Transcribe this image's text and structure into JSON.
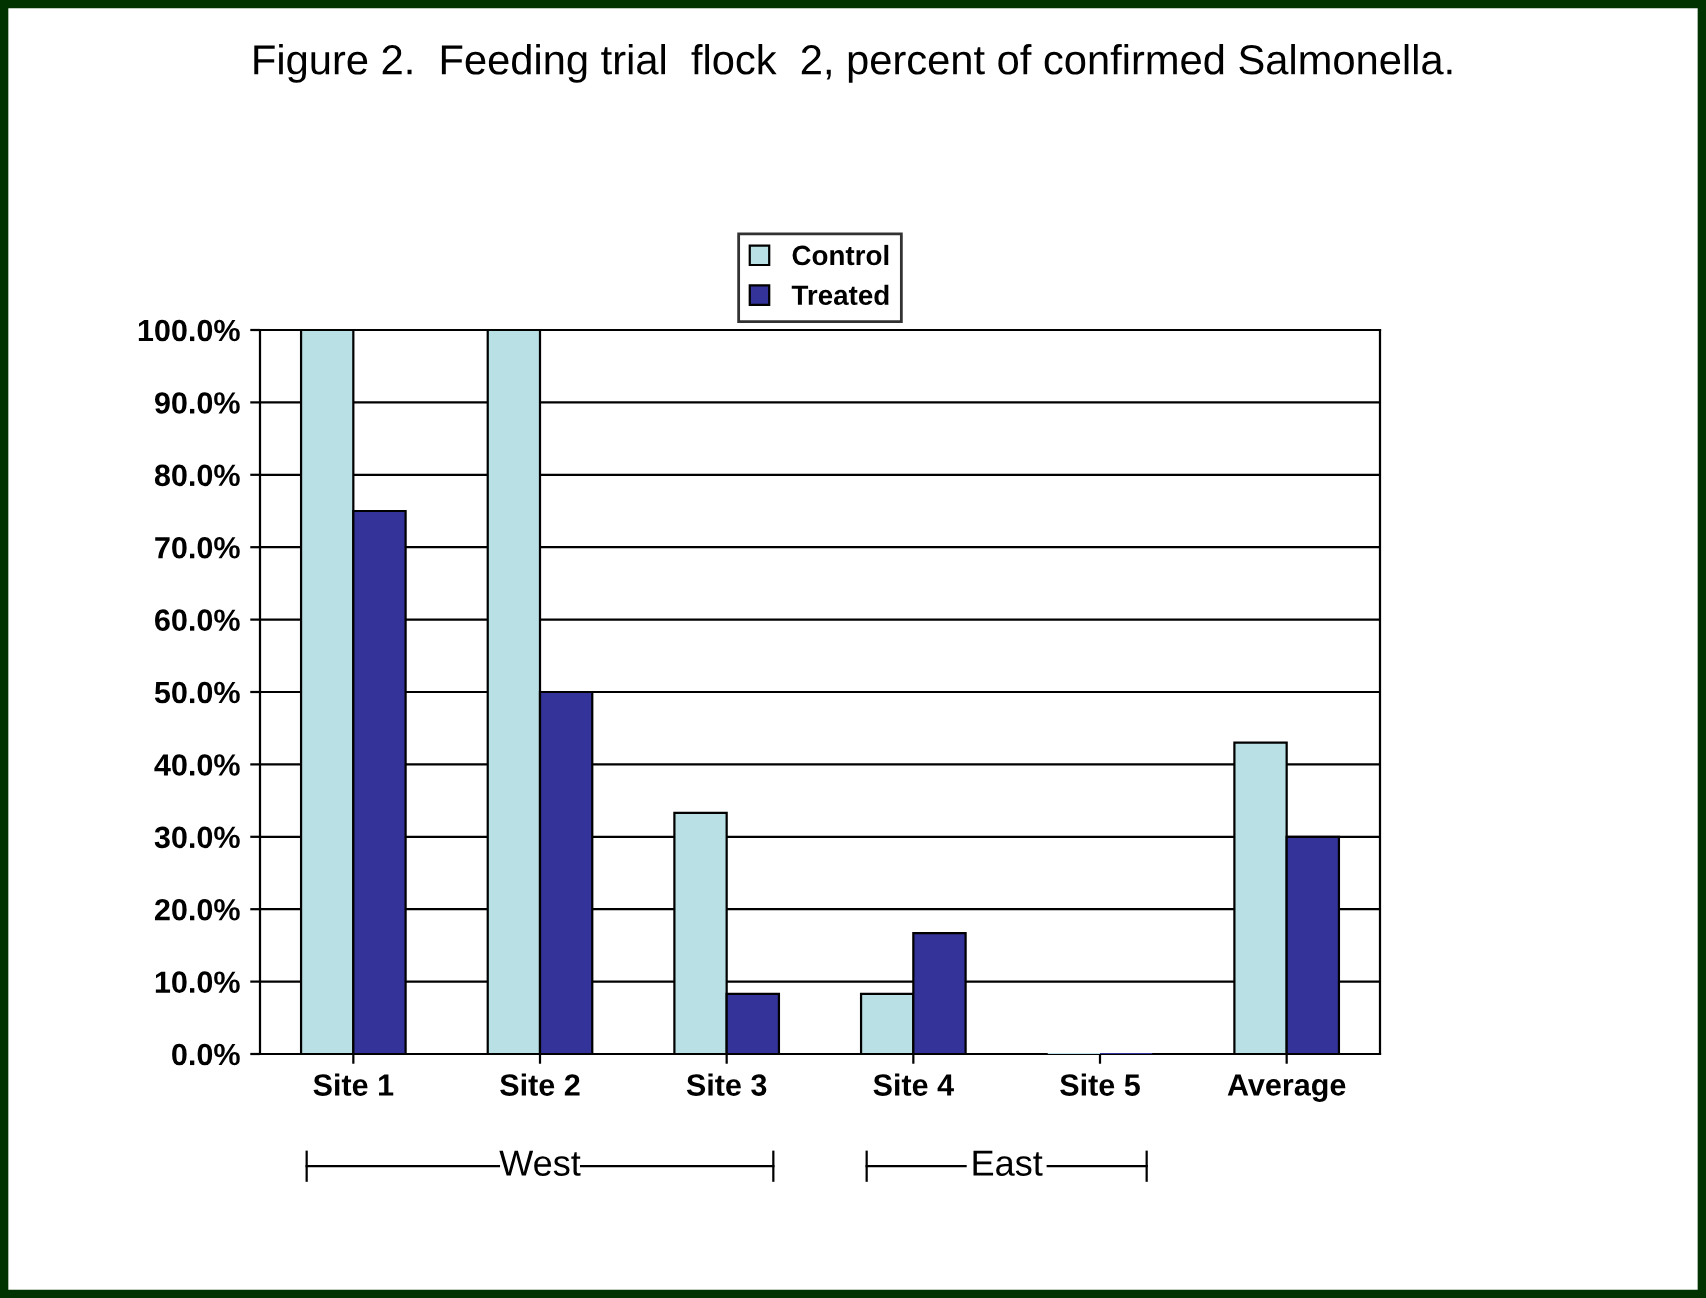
{
  "chart_data": {
    "type": "bar",
    "title": "Figure 2.  Feeding trial  flock  2, percent of confirmed Salmonella.",
    "categories": [
      "Site 1",
      "Site 2",
      "Site 3",
      "Site 4",
      "Site 5",
      "Average"
    ],
    "series": [
      {
        "name": "Control",
        "color": "#b9e0e4",
        "values": [
          100,
          100,
          33.3,
          8.3,
          0,
          43
        ]
      },
      {
        "name": "Treated",
        "color": "#333399",
        "values": [
          75,
          50,
          8.3,
          16.7,
          0,
          30
        ]
      }
    ],
    "ylim": [
      0,
      100
    ],
    "yticks": [
      {
        "value": 0,
        "label": "0.0%"
      },
      {
        "value": 10,
        "label": "10.0%"
      },
      {
        "value": 20,
        "label": "20.0%"
      },
      {
        "value": 30,
        "label": "30.0%"
      },
      {
        "value": 40,
        "label": "40.0%"
      },
      {
        "value": 50,
        "label": "50.0%"
      },
      {
        "value": 60,
        "label": "60.0%"
      },
      {
        "value": 70,
        "label": "70.0%"
      },
      {
        "value": 80,
        "label": "80.0%"
      },
      {
        "value": 90,
        "label": "90.0%"
      },
      {
        "value": 100,
        "label": "100.0%"
      }
    ],
    "grid": "y",
    "legend": "top",
    "annotations": [
      "West",
      "East"
    ]
  }
}
